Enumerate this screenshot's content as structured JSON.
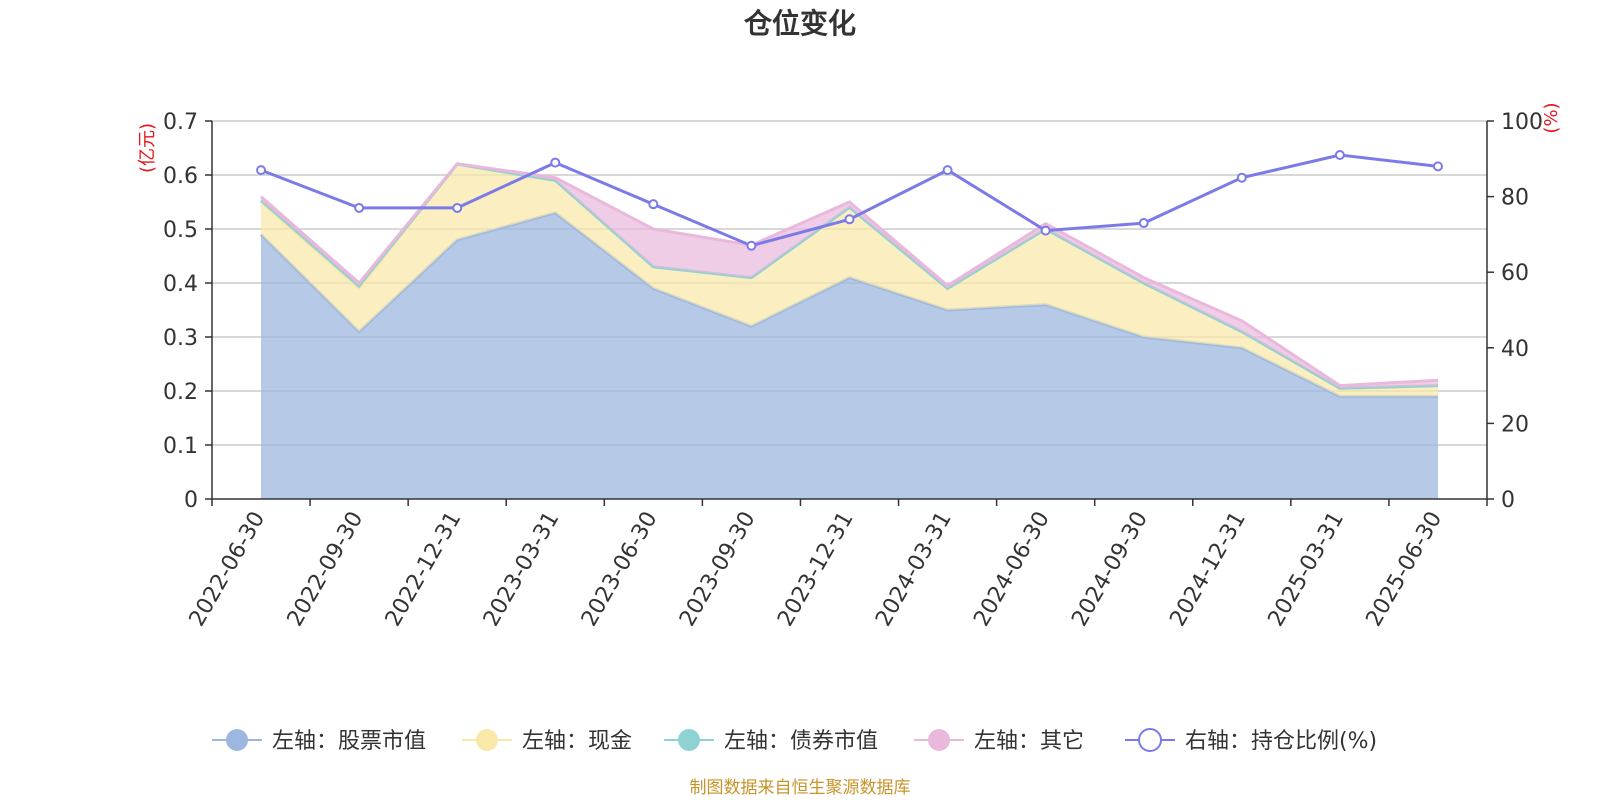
{
  "chart_data": {
    "type": "area",
    "title": "仓位变化",
    "categories": [
      "2022-06-30",
      "2022-09-30",
      "2022-12-31",
      "2023-03-31",
      "2023-06-30",
      "2023-09-30",
      "2023-12-31",
      "2024-03-31",
      "2024-06-30",
      "2024-09-30",
      "2024-12-31",
      "2025-03-31",
      "2025-06-30"
    ],
    "left_axis": {
      "unit": "(亿元)",
      "ylim": [
        0,
        0.7
      ],
      "ticks": [
        "0",
        "0.1",
        "0.2",
        "0.3",
        "0.4",
        "0.5",
        "0.6",
        "0.7"
      ]
    },
    "right_axis": {
      "unit": "(%)",
      "ylim": [
        0,
        100
      ],
      "ticks": [
        "0",
        "20",
        "40",
        "60",
        "80",
        "100"
      ]
    },
    "stacked": true,
    "series": [
      {
        "name": "左轴：股票市值",
        "axis": "left",
        "type": "area",
        "color": "#9db8e0",
        "values": [
          0.49,
          0.31,
          0.48,
          0.53,
          0.39,
          0.32,
          0.41,
          0.35,
          0.36,
          0.3,
          0.28,
          0.19,
          0.19
        ]
      },
      {
        "name": "左轴：现金",
        "axis": "left",
        "type": "area",
        "color": "#f9e8a8",
        "values": [
          0.06,
          0.08,
          0.14,
          0.06,
          0.04,
          0.09,
          0.13,
          0.04,
          0.14,
          0.1,
          0.03,
          0.015,
          0.02
        ]
      },
      {
        "name": "左轴：债券市值",
        "axis": "left",
        "type": "area",
        "color": "#8ed2d2",
        "values": [
          0.003,
          0.005,
          0,
          0,
          0,
          0,
          0,
          0,
          0,
          0,
          0,
          0,
          0
        ]
      },
      {
        "name": "左轴：其它",
        "axis": "left",
        "type": "area",
        "color": "#e9b8dc",
        "values": [
          0.007,
          0.005,
          0.001,
          0.005,
          0.07,
          0.06,
          0.01,
          0.005,
          0.01,
          0.01,
          0.02,
          0.005,
          0.01
        ]
      },
      {
        "name": "右轴：持仓比例(%)",
        "axis": "right",
        "type": "line",
        "color": "#7b7be8",
        "values": [
          87,
          77,
          77,
          89,
          78,
          67,
          74,
          87,
          71,
          73,
          85,
          91,
          88
        ]
      }
    ],
    "grid": true,
    "legend_position": "bottom"
  },
  "source_note": "制图数据来自恒生聚源数据库"
}
